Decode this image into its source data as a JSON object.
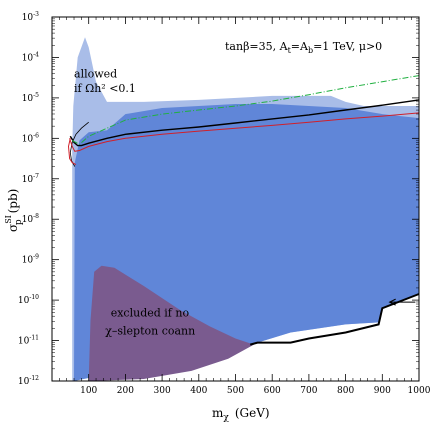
{
  "chart_data": {
    "type": "area",
    "title": "tanβ=35, Aₜ=Aᵦ=1 TeV, μ>0",
    "title_parts": {
      "tb_label": "tanβ=35, A",
      "t_sub": "t",
      "eq": "=A",
      "b_sub": "b",
      "rest": "=1 TeV, μ>0"
    },
    "xlabel": {
      "main": "m",
      "sub": "χ",
      "unit": "(GeV)"
    },
    "ylabel": {
      "main": "σ",
      "sup": "SI",
      "sub": "p",
      "unit": "(pb)"
    },
    "xlim": [
      0,
      1000
    ],
    "ylim_log10": [
      -12,
      -3
    ],
    "y_scale": "log",
    "x_ticks": [
      100,
      200,
      300,
      400,
      500,
      600,
      700,
      800,
      900,
      1000
    ],
    "y_ticks": [
      {
        "value": -12,
        "base": "10",
        "exp": "-12"
      },
      {
        "value": -11,
        "base": "10",
        "exp": "-11"
      },
      {
        "value": -10,
        "base": "10",
        "exp": "-10"
      },
      {
        "value": -9,
        "base": "10",
        "exp": "-9"
      },
      {
        "value": -8,
        "base": "10",
        "exp": "-8"
      },
      {
        "value": -7,
        "base": "10",
        "exp": "-7"
      },
      {
        "value": -6,
        "base": "10",
        "exp": "-6"
      },
      {
        "value": -5,
        "base": "10",
        "exp": "-5"
      },
      {
        "value": -4,
        "base": "10",
        "exp": "-4"
      },
      {
        "value": -3,
        "base": "10",
        "exp": "-3"
      }
    ],
    "regions": [
      {
        "name": "allowed if Ωh² < 0.1",
        "color": "#a9bde8",
        "points": [
          [
            55,
            -12
          ],
          [
            55,
            -6.3
          ],
          [
            58,
            -5.2
          ],
          [
            70,
            -4.0
          ],
          [
            90,
            -3.5
          ],
          [
            100,
            -3.75
          ],
          [
            120,
            -4.6
          ],
          [
            150,
            -5.1
          ],
          [
            250,
            -5.1
          ],
          [
            400,
            -5.05
          ],
          [
            600,
            -4.95
          ],
          [
            760,
            -4.95
          ],
          [
            800,
            -5.1
          ],
          [
            850,
            -5.2
          ],
          [
            1000,
            -5.2
          ],
          [
            1000,
            -9.85
          ],
          [
            900,
            -10.2
          ],
          [
            890,
            -10.55
          ],
          [
            800,
            -10.6
          ],
          [
            650,
            -10.8
          ],
          [
            560,
            -11.05
          ],
          [
            540,
            -11.1
          ],
          [
            52,
            -12
          ]
        ]
      },
      {
        "name": "main",
        "color": "#6086d8",
        "points": [
          [
            60,
            -12
          ],
          [
            62,
            -6.6
          ],
          [
            75,
            -6.05
          ],
          [
            100,
            -5.85
          ],
          [
            150,
            -5.8
          ],
          [
            200,
            -5.4
          ],
          [
            300,
            -5.25
          ],
          [
            400,
            -5.2
          ],
          [
            500,
            -5.15
          ],
          [
            600,
            -5.15
          ],
          [
            700,
            -5.2
          ],
          [
            800,
            -5.25
          ],
          [
            900,
            -5.4
          ],
          [
            1000,
            -5.5
          ],
          [
            1000,
            -9.85
          ],
          [
            900,
            -10.2
          ],
          [
            890,
            -10.55
          ],
          [
            800,
            -10.6
          ],
          [
            650,
            -10.8
          ],
          [
            560,
            -11.05
          ],
          [
            540,
            -11.1
          ],
          [
            60,
            -12
          ]
        ]
      },
      {
        "name": "excluded if no χ-slepton coann",
        "color": "#7a5b8f",
        "points": [
          [
            100,
            -12
          ],
          [
            105,
            -10.5
          ],
          [
            115,
            -9.3
          ],
          [
            135,
            -9.15
          ],
          [
            170,
            -9.2
          ],
          [
            250,
            -9.65
          ],
          [
            350,
            -10.25
          ],
          [
            430,
            -10.65
          ],
          [
            500,
            -10.95
          ],
          [
            550,
            -11.1
          ],
          [
            480,
            -11.45
          ],
          [
            380,
            -11.75
          ],
          [
            250,
            -11.95
          ],
          [
            100,
            -12
          ]
        ]
      }
    ],
    "series": [
      {
        "style": "black-boundary",
        "color": "#000000",
        "points": [
          [
            540,
            -11.1
          ],
          [
            560,
            -11.05
          ],
          [
            650,
            -11.05
          ],
          [
            700,
            -10.95
          ],
          [
            800,
            -10.8
          ],
          [
            890,
            -10.6
          ],
          [
            900,
            -10.2
          ],
          [
            1000,
            -9.85
          ]
        ]
      },
      {
        "style": "black-solid",
        "color": "#000000",
        "points": [
          [
            50,
            -5.95
          ],
          [
            60,
            -6.1
          ],
          [
            70,
            -6.18
          ],
          [
            80,
            -6.18
          ],
          [
            100,
            -6.12
          ],
          [
            150,
            -6.0
          ],
          [
            200,
            -5.9
          ],
          [
            300,
            -5.8
          ],
          [
            400,
            -5.72
          ],
          [
            500,
            -5.62
          ],
          [
            600,
            -5.52
          ],
          [
            700,
            -5.42
          ],
          [
            800,
            -5.3
          ],
          [
            900,
            -5.18
          ],
          [
            1000,
            -5.05
          ]
        ]
      },
      {
        "style": "black-thin-hook",
        "color": "#000000",
        "points": [
          [
            100,
            -5.6
          ],
          [
            80,
            -5.75
          ],
          [
            65,
            -5.9
          ],
          [
            55,
            -6.1
          ],
          [
            50,
            -6.35
          ],
          [
            53,
            -6.55
          ],
          [
            62,
            -6.7
          ]
        ]
      },
      {
        "style": "red-solid",
        "color": "#d0202a",
        "points": [
          [
            48,
            -6.0
          ],
          [
            55,
            -6.2
          ],
          [
            62,
            -6.32
          ],
          [
            75,
            -6.3
          ],
          [
            100,
            -6.2
          ],
          [
            150,
            -6.08
          ],
          [
            200,
            -6.0
          ],
          [
            300,
            -5.9
          ],
          [
            400,
            -5.82
          ],
          [
            500,
            -5.75
          ],
          [
            600,
            -5.68
          ],
          [
            700,
            -5.6
          ],
          [
            800,
            -5.52
          ],
          [
            900,
            -5.45
          ],
          [
            1000,
            -5.37
          ]
        ]
      },
      {
        "style": "green-dashdot",
        "color": "#20b040",
        "points": [
          [
            55,
            -6.05
          ],
          [
            75,
            -6.15
          ],
          [
            100,
            -5.95
          ],
          [
            150,
            -5.75
          ],
          [
            200,
            -5.55
          ],
          [
            300,
            -5.4
          ],
          [
            400,
            -5.3
          ],
          [
            500,
            -5.2
          ],
          [
            600,
            -5.08
          ],
          [
            700,
            -4.92
          ],
          [
            800,
            -4.75
          ],
          [
            900,
            -4.6
          ],
          [
            1000,
            -4.45
          ]
        ]
      },
      {
        "style": "red-hook",
        "color": "#d0202a",
        "points": [
          [
            50,
            -6.0
          ],
          [
            45,
            -6.2
          ],
          [
            48,
            -6.5
          ],
          [
            55,
            -6.6
          ],
          [
            65,
            -6.65
          ]
        ]
      }
    ],
    "annotations": [
      {
        "text": "allowed",
        "x": 60,
        "y": -4.5
      },
      {
        "text": "if Ωh² <0.1",
        "x": 60,
        "y": -4.85
      },
      {
        "text": "excluded if no",
        "x": 160,
        "y": -10.4
      },
      {
        "text": "χ–slepton coann",
        "x": 145,
        "y": -10.85
      }
    ],
    "arrow": {
      "from": [
        990,
        -10.05
      ],
      "to": [
        920,
        -10.05
      ]
    }
  }
}
